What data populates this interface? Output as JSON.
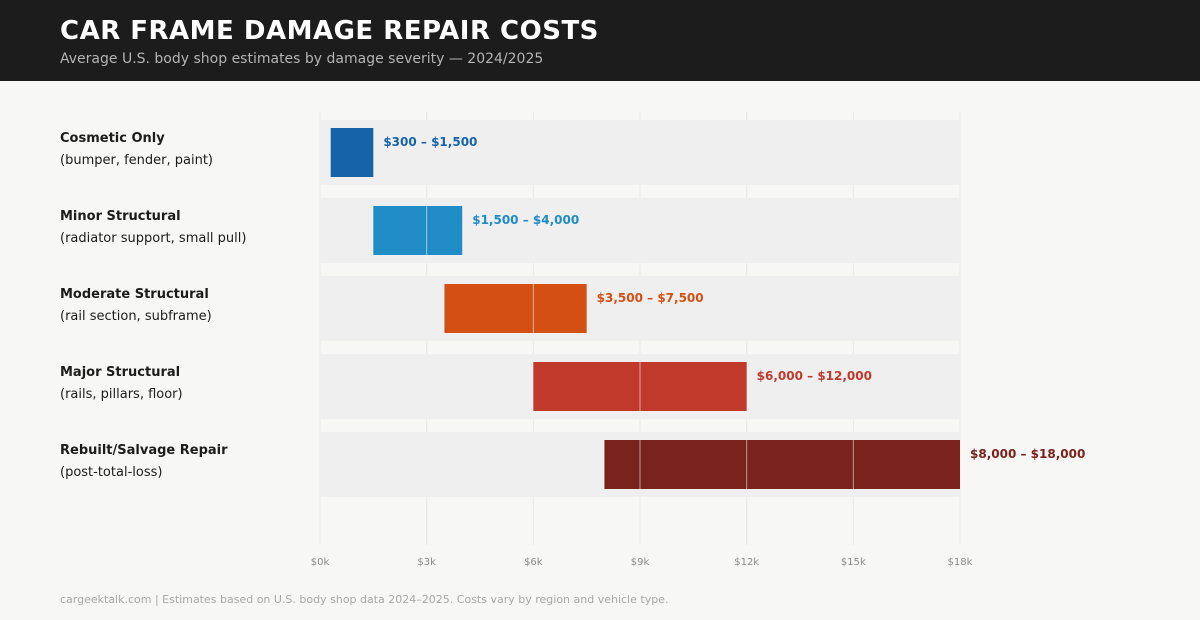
{
  "header": {
    "title": "CAR FRAME DAMAGE REPAIR COSTS",
    "subtitle": "Average U.S. body shop estimates by damage severity — 2024/2025"
  },
  "chart_data": {
    "type": "bar",
    "orientation": "horizontal",
    "subtype": "range",
    "xlim": [
      0,
      18000
    ],
    "ticks": [
      0,
      3000,
      6000,
      9000,
      12000,
      15000,
      18000
    ],
    "tick_labels": [
      "$0k",
      "$3k",
      "$6k",
      "$9k",
      "$12k",
      "$15k",
      "$18k"
    ],
    "grid": true,
    "categories": [
      {
        "name": "Cosmetic Only",
        "desc": "(bumper, fender, paint)",
        "low": 300,
        "high": 1500,
        "label": "$300 – $1,500",
        "color": "#1763a8"
      },
      {
        "name": "Minor Structural",
        "desc": "(radiator support, small pull)",
        "low": 1500,
        "high": 4000,
        "label": "$1,500 – $4,000",
        "color": "#208cc6"
      },
      {
        "name": "Moderate Structural",
        "desc": "(rail section, subframe)",
        "low": 3500,
        "high": 7500,
        "label": "$3,500 – $7,500",
        "color": "#d35012"
      },
      {
        "name": "Major Structural",
        "desc": "(rails, pillars, floor)",
        "low": 6000,
        "high": 12000,
        "label": "$6,000 – $12,000",
        "color": "#c0392b"
      },
      {
        "name": "Rebuilt/Salvage Repair",
        "desc": "(post-total-loss)",
        "low": 8000,
        "high": 18000,
        "label": "$8,000 – $18,000",
        "color": "#7a221c"
      }
    ]
  },
  "footer": {
    "text": "cargeektalk.com  |  Estimates based on U.S. body shop data 2024–2025. Costs vary by region and vehicle type."
  }
}
